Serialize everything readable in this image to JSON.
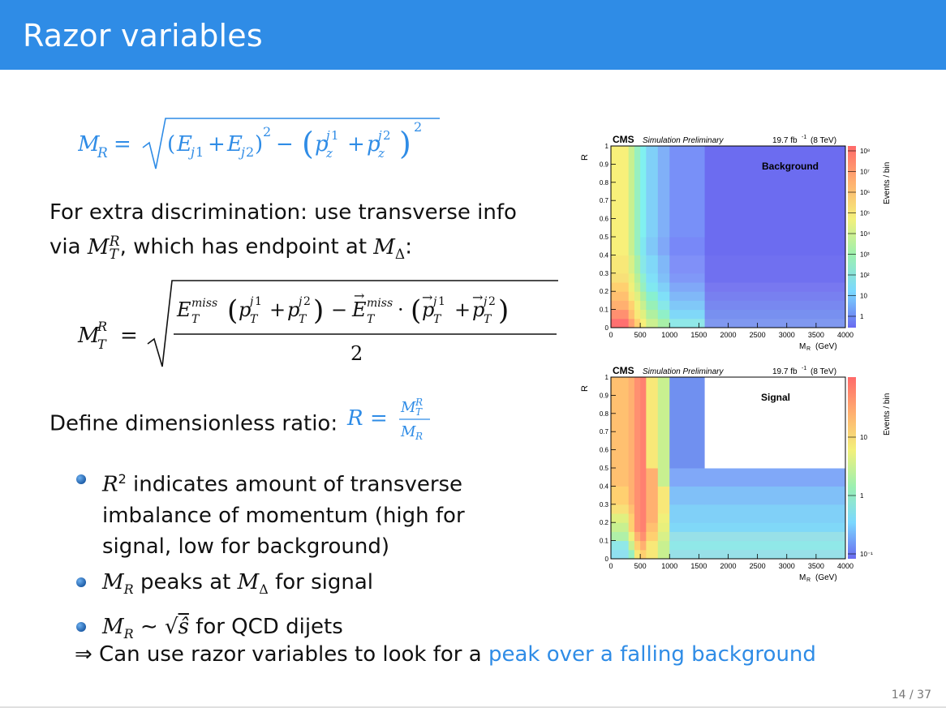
{
  "slide": {
    "title": "Razor variables",
    "page": "14 / 37"
  },
  "text": {
    "para1_line1": "For extra discrimination: use transverse info",
    "para1_via": "via",
    "para1_rest": ", which has endpoint at",
    "para2": "Define dimensionless ratio:",
    "bullet1_a": "indicates amount of transverse",
    "bullet1_b": "imbalance of momentum (high for",
    "bullet1_c": "signal, low for background)",
    "bullet2_mid": "peaks at",
    "bullet2_end": "for signal",
    "bullet3_end": "for QCD dijets",
    "conclusion_a": "⇒ Can use razor variables to look for a",
    "conclusion_b": "peak over a falling background"
  },
  "plots": {
    "background": {
      "cms": "CMS",
      "sim": "Simulation Preliminary",
      "lumi": "19.7 fb",
      "lumi_sup": "-1",
      "energy": "(8 TeV)",
      "label": "Background",
      "zlabel": "Events / bin",
      "ylabel": "R",
      "xlabel": "M",
      "xsub": "R",
      "xunit": "(GeV)",
      "xticks": [
        "0",
        "500",
        "1000",
        "1500",
        "2000",
        "2500",
        "3000",
        "3500",
        "4000"
      ],
      "yticks": [
        "0",
        "0.1",
        "0.2",
        "0.3",
        "0.4",
        "0.5",
        "0.6",
        "0.7",
        "0.8",
        "0.9",
        "1"
      ],
      "zticks": [
        "10⁸",
        "10⁷",
        "10⁶",
        "10⁵",
        "10⁴",
        "10³",
        "10²",
        "10",
        "1"
      ]
    },
    "signal": {
      "cms": "CMS",
      "sim": "Simulation Preliminary",
      "lumi": "19.7 fb",
      "lumi_sup": "-1",
      "energy": "(8 TeV)",
      "label": "Signal",
      "zlabel": "Events / bin",
      "ylabel": "R",
      "xlabel": "M",
      "xsub": "R",
      "xunit": "(GeV)",
      "xticks": [
        "0",
        "500",
        "1000",
        "1500",
        "2000",
        "2500",
        "3000",
        "3500",
        "4000"
      ],
      "yticks": [
        "0",
        "0.1",
        "0.2",
        "0.3",
        "0.4",
        "0.5",
        "0.6",
        "0.7",
        "0.8",
        "0.9",
        "1"
      ],
      "zticks": [
        "10",
        "1",
        "10⁻¹"
      ]
    }
  },
  "colors": {
    "title_bar": "#2f8ce6",
    "accent": "#2f8ce6"
  }
}
